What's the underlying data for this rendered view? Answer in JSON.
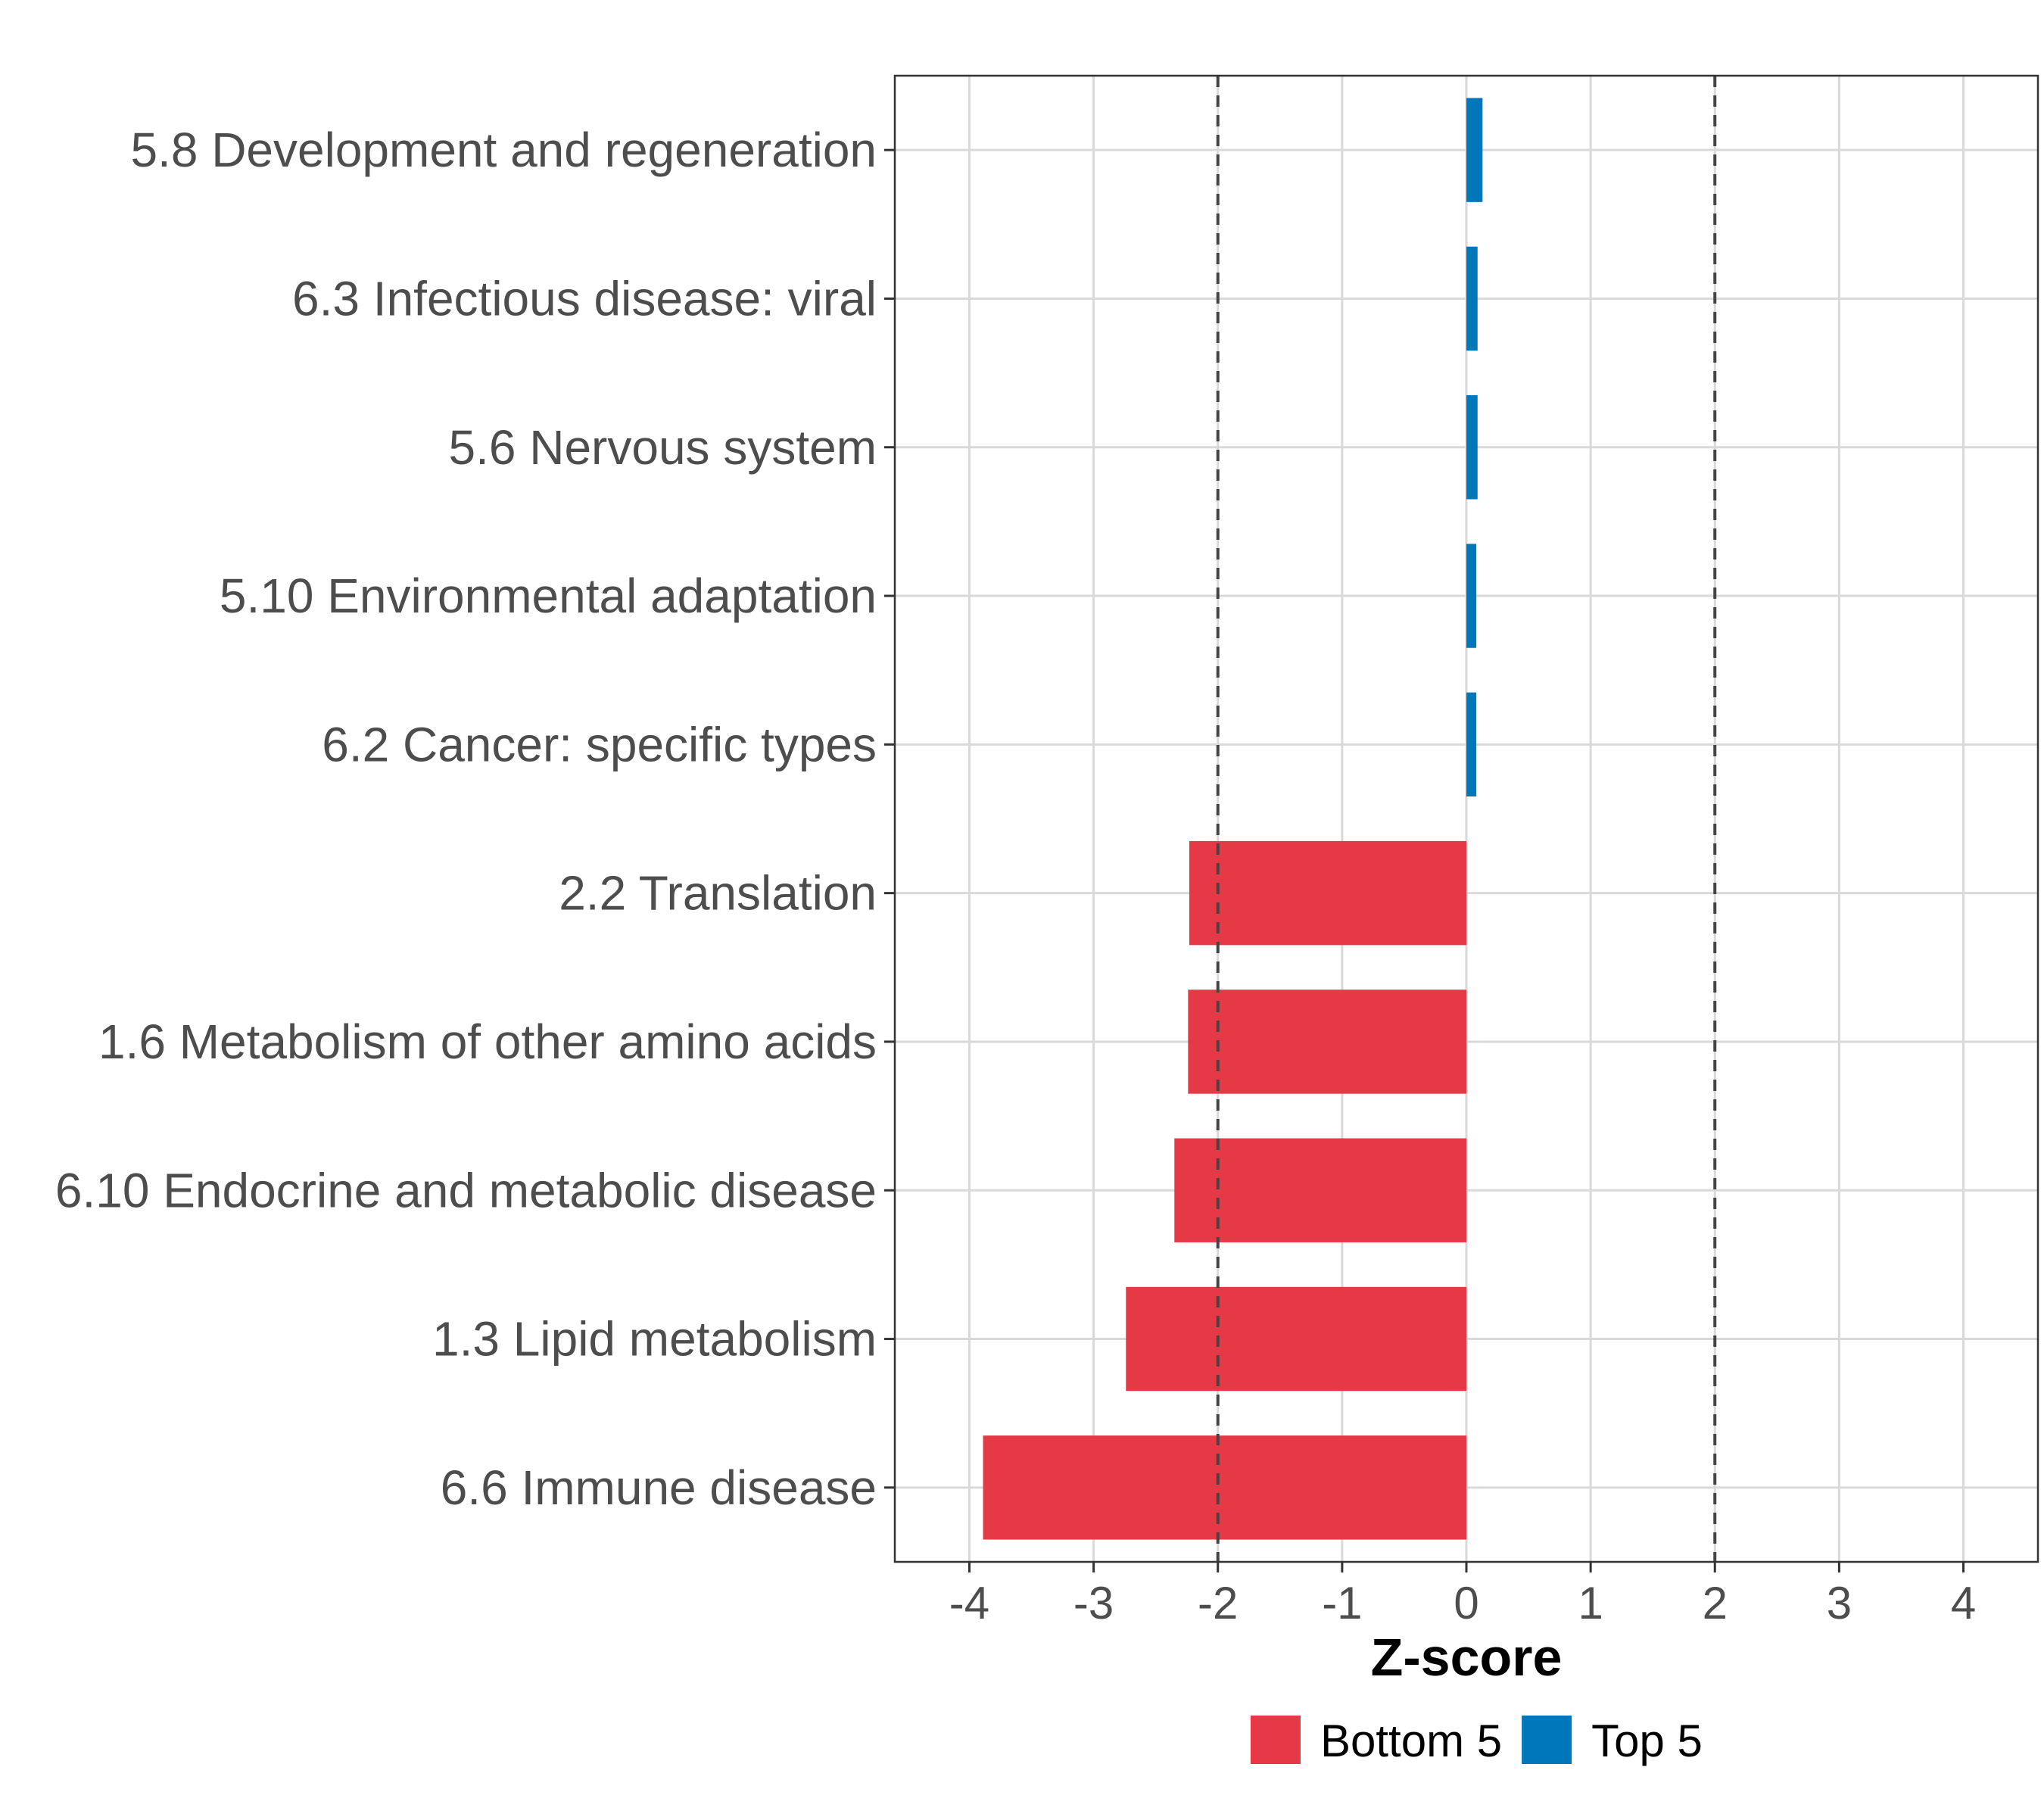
{
  "chart_data": {
    "type": "bar",
    "orientation": "horizontal",
    "xlabel": "Z-score",
    "ylabel": "",
    "xlim": [
      -4.6,
      4.6
    ],
    "x_ticks": [
      -4,
      -3,
      -2,
      -1,
      0,
      1,
      2,
      3,
      4
    ],
    "x_tick_labels": [
      "-4",
      "-3",
      "-2",
      "-1",
      "0",
      "1",
      "2",
      "3",
      "4"
    ],
    "reference_lines": [
      -2,
      2
    ],
    "grid": true,
    "legend_position": "bottom",
    "legend": [
      {
        "name": "Bottom 5",
        "color": "#e63946"
      },
      {
        "name": "Top 5",
        "color": "#0077bb"
      }
    ],
    "categories": [
      "5.8 Development and regeneration",
      "6.3 Infectious disease: viral",
      "5.6 Nervous system",
      "5.10 Environmental adaptation",
      "6.2 Cancer: specific types",
      "2.2 Translation",
      "1.6 Metabolism of other amino acids",
      "6.10 Endocrine and metabolic disease",
      "1.3 Lipid metabolism",
      "6.6 Immune disease"
    ],
    "values": [
      0.13,
      0.09,
      0.09,
      0.08,
      0.08,
      -2.23,
      -2.24,
      -2.35,
      -2.74,
      -3.89
    ],
    "groups": [
      "Top 5",
      "Top 5",
      "Top 5",
      "Top 5",
      "Top 5",
      "Bottom 5",
      "Bottom 5",
      "Bottom 5",
      "Bottom 5",
      "Bottom 5"
    ]
  }
}
